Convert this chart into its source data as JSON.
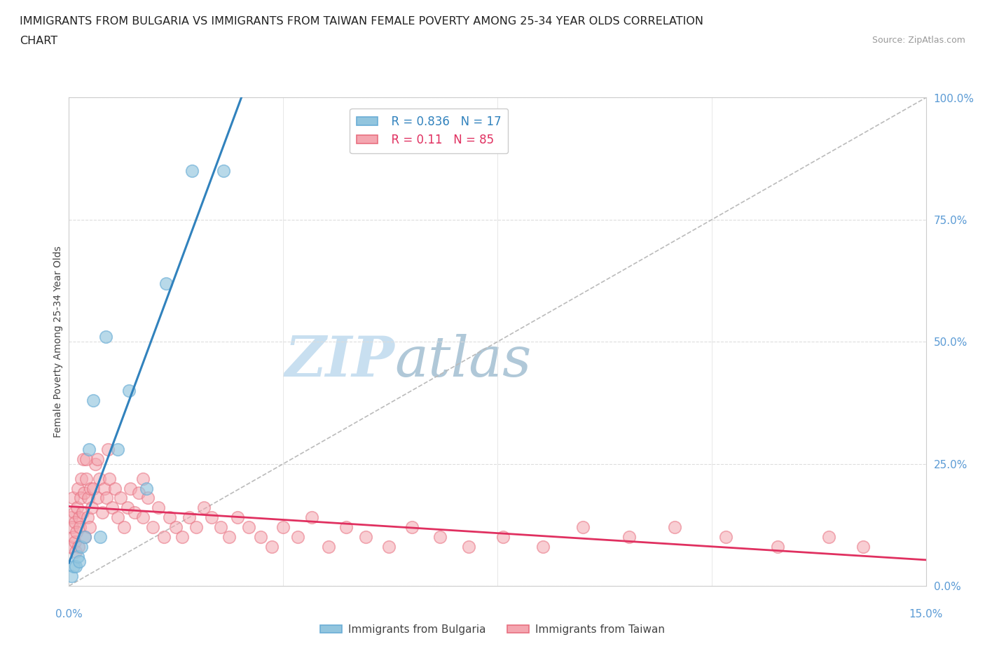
{
  "title_line1": "IMMIGRANTS FROM BULGARIA VS IMMIGRANTS FROM TAIWAN FEMALE POVERTY AMONG 25-34 YEAR OLDS CORRELATION",
  "title_line2": "CHART",
  "source_text": "Source: ZipAtlas.com",
  "ylabel": "Female Poverty Among 25-34 Year Olds",
  "xlim": [
    0,
    15
  ],
  "ylim": [
    0,
    100
  ],
  "watermark_zip": "ZIP",
  "watermark_atlas": "atlas",
  "bulgaria_color": "#92c5de",
  "bulgaria_edge": "#6baed6",
  "taiwan_color": "#f4a6b0",
  "taiwan_edge": "#e87080",
  "bulgaria_line_color": "#3182bd",
  "taiwan_line_color": "#e03060",
  "diag_color": "#bbbbbb",
  "bg_color": "#ffffff",
  "grid_color": "#dddddd",
  "axis_color": "#5b9bd5",
  "watermark_color": "#c8dff0",
  "watermark_atlas_color": "#b0c8d8",
  "title_color": "#222222",
  "source_color": "#999999",
  "ylabel_color": "#444444",
  "legend_edge_color": "#cccccc",
  "R_bulgaria": 0.836,
  "N_bulgaria": 17,
  "R_taiwan": 0.11,
  "N_taiwan": 85,
  "bulgaria_x": [
    0.05,
    0.08,
    0.12,
    0.15,
    0.18,
    0.22,
    0.28,
    0.35,
    0.42,
    0.55,
    0.65,
    0.85,
    1.05,
    1.35,
    1.7,
    2.15,
    2.7
  ],
  "bulgaria_y": [
    2,
    4,
    4,
    6,
    5,
    8,
    10,
    28,
    38,
    10,
    51,
    28,
    40,
    20,
    62,
    85,
    85
  ],
  "taiwan_x": [
    0.02,
    0.04,
    0.06,
    0.07,
    0.08,
    0.09,
    0.1,
    0.11,
    0.12,
    0.13,
    0.14,
    0.16,
    0.17,
    0.18,
    0.19,
    0.2,
    0.22,
    0.24,
    0.26,
    0.28,
    0.3,
    0.32,
    0.34,
    0.36,
    0.38,
    0.4,
    0.43,
    0.46,
    0.5,
    0.54,
    0.58,
    0.62,
    0.66,
    0.7,
    0.75,
    0.8,
    0.85,
    0.9,
    0.96,
    1.02,
    1.08,
    1.15,
    1.22,
    1.3,
    1.38,
    1.47,
    1.56,
    1.66,
    1.76,
    1.87,
    1.98,
    2.1,
    2.23,
    2.36,
    2.5,
    2.65,
    2.8,
    2.95,
    3.15,
    3.35,
    3.55,
    3.75,
    4.0,
    4.25,
    4.55,
    4.85,
    5.2,
    5.6,
    6.0,
    6.5,
    7.0,
    7.6,
    8.3,
    9.0,
    9.8,
    10.6,
    11.5,
    12.4,
    13.3,
    13.9,
    0.25,
    0.3,
    0.5,
    0.68,
    1.3
  ],
  "taiwan_y": [
    8,
    14,
    12,
    18,
    10,
    15,
    9,
    13,
    7,
    11,
    16,
    20,
    8,
    14,
    12,
    18,
    22,
    15,
    19,
    10,
    22,
    14,
    18,
    12,
    20,
    16,
    20,
    25,
    18,
    22,
    15,
    20,
    18,
    22,
    16,
    20,
    14,
    18,
    12,
    16,
    20,
    15,
    19,
    14,
    18,
    12,
    16,
    10,
    14,
    12,
    10,
    14,
    12,
    16,
    14,
    12,
    10,
    14,
    12,
    10,
    8,
    12,
    10,
    14,
    8,
    12,
    10,
    8,
    12,
    10,
    8,
    10,
    8,
    12,
    10,
    12,
    10,
    8,
    10,
    8,
    26,
    26,
    26,
    28,
    22
  ]
}
